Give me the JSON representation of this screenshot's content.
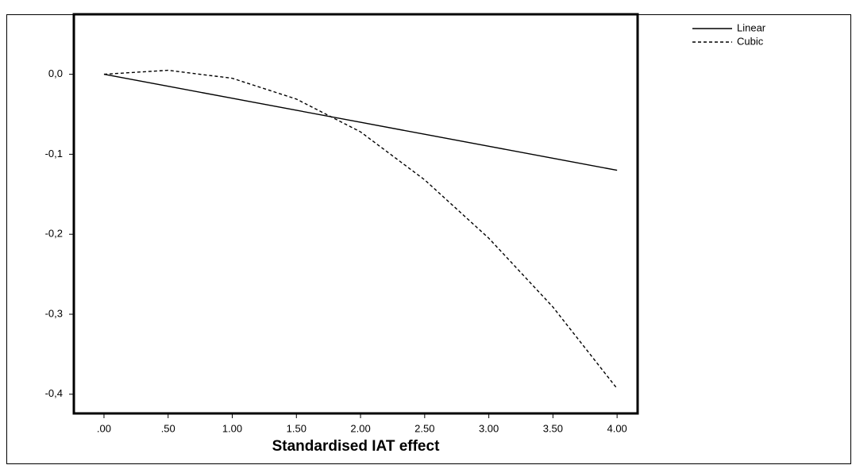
{
  "chart_data": {
    "type": "line",
    "x_label": "Standardised IAT effect",
    "x": [
      0,
      0.5,
      1,
      1.5,
      2,
      2.5,
      3,
      3.5,
      4
    ],
    "series": [
      {
        "name": "Linear",
        "color": "#000000",
        "dash": "solid",
        "values": [
          0,
          -0.015,
          -0.03,
          -0.045,
          -0.06,
          -0.075,
          -0.09,
          -0.105,
          -0.12
        ]
      },
      {
        "name": "Cubic",
        "color": "#000000",
        "dash": "dashed",
        "values": [
          0,
          0.005,
          -0.005,
          -0.031,
          -0.072,
          -0.132,
          -0.205,
          -0.291,
          -0.393
        ]
      }
    ],
    "xlim": [
      -0.235,
      4.16
    ],
    "ylim": [
      -0.424,
      0.075
    ],
    "xticks": [
      {
        "value": 0,
        "label": ".00"
      },
      {
        "value": 0.5,
        "label": ".50"
      },
      {
        "value": 1,
        "label": "1.00"
      },
      {
        "value": 1.5,
        "label": "1.50"
      },
      {
        "value": 2,
        "label": "2.00"
      },
      {
        "value": 2.5,
        "label": "2.50"
      },
      {
        "value": 3,
        "label": "3.00"
      },
      {
        "value": 3.5,
        "label": "3.50"
      },
      {
        "value": 4,
        "label": "4.00"
      }
    ],
    "yticks": [
      {
        "value": 0,
        "label": "0,0"
      },
      {
        "value": -0.1,
        "label": "-0,1"
      },
      {
        "value": -0.2,
        "label": "-0,2"
      },
      {
        "value": -0.3,
        "label": "-0,3"
      },
      {
        "value": -0.4,
        "label": "-0,4"
      }
    ],
    "legend": "top-right"
  }
}
